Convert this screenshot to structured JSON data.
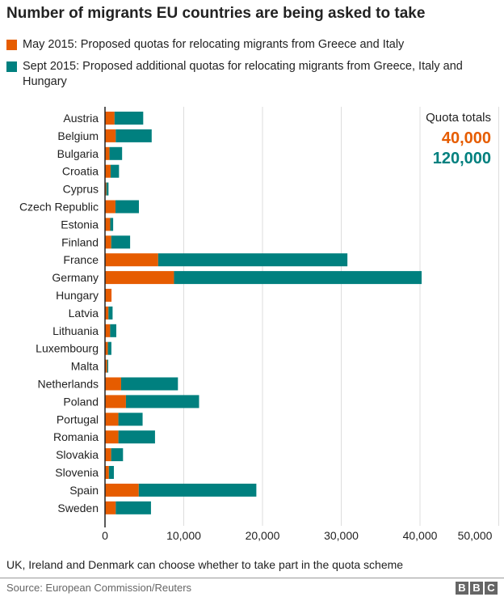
{
  "chart_data": {
    "type": "bar",
    "stacked": true,
    "orientation": "horizontal",
    "title": "Number of migrants EU countries are being asked to take",
    "categories": [
      "Austria",
      "Belgium",
      "Bulgaria",
      "Croatia",
      "Cyprus",
      "Czech Republic",
      "Estonia",
      "Finland",
      "France",
      "Germany",
      "Hungary",
      "Latvia",
      "Lithuania",
      "Luxembourg",
      "Malta",
      "Netherlands",
      "Poland",
      "Portugal",
      "Romania",
      "Slovakia",
      "Slovenia",
      "Spain",
      "Sweden"
    ],
    "series": [
      {
        "name": "May 2015: Proposed quotas for relocating migrants from Greece and Italy",
        "color": "#e65c00",
        "values": [
          1213,
          1364,
          572,
          715,
          173,
          1328,
          663,
          792,
          6752,
          8763,
          827,
          438,
          653,
          370,
          275,
          2047,
          2659,
          1701,
          1705,
          785,
          495,
          4288,
          1369
        ]
      },
      {
        "name": "Sept 2015: Proposed additional quotas for relocating migrants from Greece, Italy and Hungary",
        "color": "#00807f",
        "values": [
          3640,
          4564,
          1600,
          1064,
          274,
          2978,
          373,
          2398,
          24031,
          31443,
          0,
          526,
          780,
          440,
          133,
          7214,
          9287,
          3074,
          4646,
          1502,
          631,
          14931,
          4469
        ]
      }
    ],
    "xlim": [
      0,
      50000
    ],
    "xticks": [
      0,
      10000,
      20000,
      30000,
      40000,
      50000
    ],
    "xtick_labels": [
      "0",
      "10,000",
      "20,000",
      "30,000",
      "40,000",
      "50,000"
    ],
    "grid": true,
    "annotation": {
      "title": "Quota totals",
      "totals": [
        "40,000",
        "120,000"
      ]
    }
  },
  "footer": {
    "note": "UK, Ireland and Denmark can choose whether to take part in the quota scheme",
    "source": "Source: European Commission/Reuters",
    "logo": [
      "B",
      "B",
      "C"
    ]
  }
}
